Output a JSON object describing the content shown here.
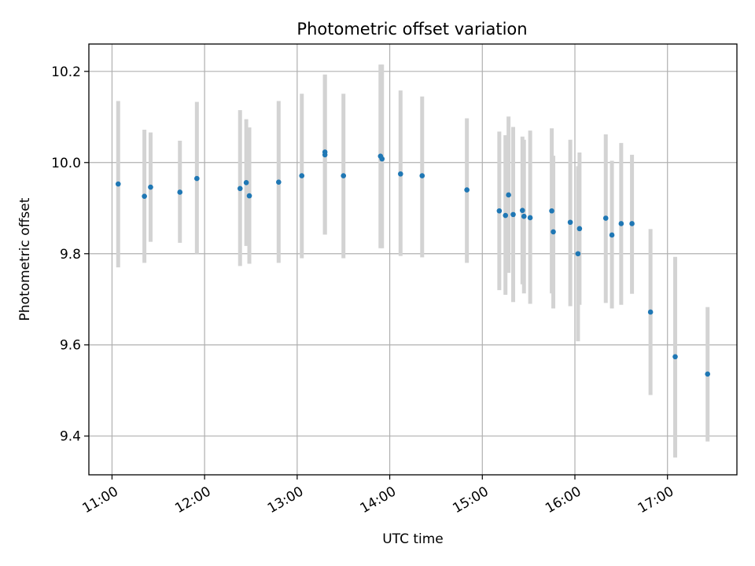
{
  "chart_data": {
    "type": "scatter",
    "title": "Photometric offset variation",
    "xlabel": "UTC time",
    "ylabel": "Photometric offset",
    "xlim": [
      "10:45",
      "17:45"
    ],
    "ylim": [
      9.315,
      10.26
    ],
    "x_ticks": [
      "11:00",
      "12:00",
      "13:00",
      "14:00",
      "15:00",
      "16:00",
      "17:00"
    ],
    "y_ticks": [
      9.4,
      9.6,
      9.8,
      10.0,
      10.2
    ],
    "y_tick_labels": [
      "9.4",
      "9.6",
      "9.8",
      "10.0",
      "10.2"
    ],
    "grid": true,
    "colors": {
      "point": "#1f77b4",
      "errorbar": "#d3d3d3"
    },
    "series": [
      {
        "points": [
          {
            "x": "11:04",
            "y": 9.953,
            "ylo": 9.77,
            "yhi": 10.135
          },
          {
            "x": "11:21",
            "y": 9.926,
            "ylo": 9.78,
            "yhi": 10.072
          },
          {
            "x": "11:25",
            "y": 9.946,
            "ylo": 9.826,
            "yhi": 10.066
          },
          {
            "x": "11:44",
            "y": 9.935,
            "ylo": 9.824,
            "yhi": 10.048
          },
          {
            "x": "11:55",
            "y": 9.965,
            "ylo": 9.8,
            "yhi": 10.133
          },
          {
            "x": "12:23",
            "y": 9.943,
            "ylo": 9.773,
            "yhi": 10.115
          },
          {
            "x": "12:27",
            "y": 9.956,
            "ylo": 9.817,
            "yhi": 10.095
          },
          {
            "x": "12:29",
            "y": 9.927,
            "ylo": 9.778,
            "yhi": 10.077
          },
          {
            "x": "12:48",
            "y": 9.957,
            "ylo": 9.78,
            "yhi": 10.135
          },
          {
            "x": "13:03",
            "y": 9.971,
            "ylo": 9.79,
            "yhi": 10.151
          },
          {
            "x": "13:18",
            "y": 10.023,
            "ylo": 9.842,
            "yhi": 10.193
          },
          {
            "x": "13:18",
            "y": 10.017,
            "ylo": 9.842,
            "yhi": 10.193
          },
          {
            "x": "13:30",
            "y": 9.971,
            "ylo": 9.79,
            "yhi": 10.151
          },
          {
            "x": "13:54",
            "y": 10.014,
            "ylo": 9.812,
            "yhi": 10.215
          },
          {
            "x": "13:55",
            "y": 10.008,
            "ylo": 9.812,
            "yhi": 10.215
          },
          {
            "x": "14:07",
            "y": 9.975,
            "ylo": 9.795,
            "yhi": 10.158
          },
          {
            "x": "14:21",
            "y": 9.971,
            "ylo": 9.792,
            "yhi": 10.145
          },
          {
            "x": "14:50",
            "y": 9.94,
            "ylo": 9.78,
            "yhi": 10.097
          },
          {
            "x": "15:11",
            "y": 9.894,
            "ylo": 9.72,
            "yhi": 10.068
          },
          {
            "x": "15:15",
            "y": 9.884,
            "ylo": 9.71,
            "yhi": 10.06
          },
          {
            "x": "15:17",
            "y": 9.929,
            "ylo": 9.758,
            "yhi": 10.101
          },
          {
            "x": "15:20",
            "y": 9.886,
            "ylo": 9.694,
            "yhi": 10.078
          },
          {
            "x": "15:26",
            "y": 9.895,
            "ylo": 9.733,
            "yhi": 10.057
          },
          {
            "x": "15:27",
            "y": 9.882,
            "ylo": 9.713,
            "yhi": 10.05
          },
          {
            "x": "15:31",
            "y": 9.879,
            "ylo": 9.69,
            "yhi": 10.07
          },
          {
            "x": "15:45",
            "y": 9.894,
            "ylo": 9.713,
            "yhi": 10.075
          },
          {
            "x": "15:46",
            "y": 9.848,
            "ylo": 9.68,
            "yhi": 10.015
          },
          {
            "x": "15:57",
            "y": 9.869,
            "ylo": 9.685,
            "yhi": 10.05
          },
          {
            "x": "16:02",
            "y": 9.8,
            "ylo": 9.608,
            "yhi": 9.992
          },
          {
            "x": "16:03",
            "y": 9.855,
            "ylo": 9.688,
            "yhi": 10.022
          },
          {
            "x": "16:20",
            "y": 9.878,
            "ylo": 9.692,
            "yhi": 10.062
          },
          {
            "x": "16:24",
            "y": 9.841,
            "ylo": 9.68,
            "yhi": 10.004
          },
          {
            "x": "16:30",
            "y": 9.866,
            "ylo": 9.688,
            "yhi": 10.043
          },
          {
            "x": "16:37",
            "y": 9.866,
            "ylo": 9.712,
            "yhi": 10.017
          },
          {
            "x": "16:49",
            "y": 9.672,
            "ylo": 9.49,
            "yhi": 9.854
          },
          {
            "x": "17:05",
            "y": 9.574,
            "ylo": 9.353,
            "yhi": 9.793
          },
          {
            "x": "17:26",
            "y": 9.536,
            "ylo": 9.388,
            "yhi": 9.683
          }
        ]
      }
    ]
  }
}
